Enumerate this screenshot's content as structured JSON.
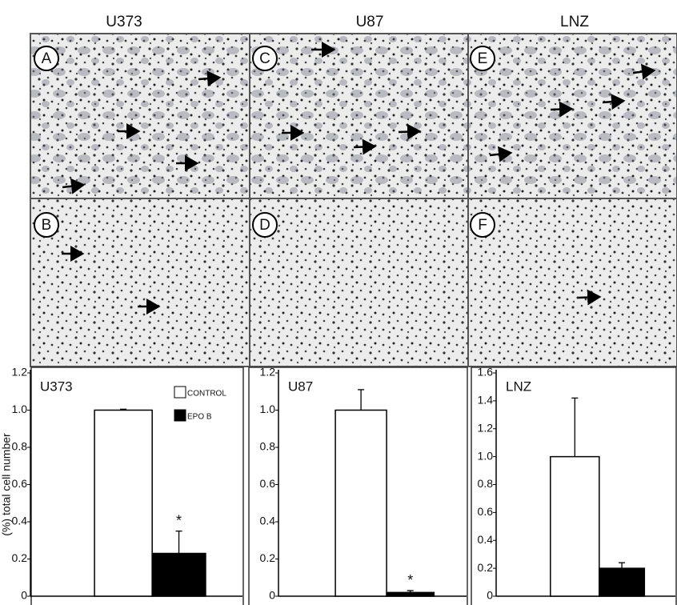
{
  "columns": [
    "U373",
    "U87",
    "LNZ"
  ],
  "panels": [
    "A",
    "B",
    "C",
    "D",
    "E",
    "F"
  ],
  "chart_data": [
    {
      "type": "bar",
      "title": "U373",
      "y_label": "(%) total cell number",
      "legend": "top-right",
      "series": [
        {
          "name": "CONTROL",
          "color": "#ffffff",
          "values": [
            1.0
          ],
          "errors": [
            0.005
          ]
        },
        {
          "name": "EPO B",
          "color": "#000000",
          "values": [
            0.23
          ],
          "errors": [
            0.12
          ]
        }
      ],
      "annotation": "*",
      "ylim": [
        0,
        1.2
      ],
      "yticks": [
        0,
        0.2,
        0.4,
        0.6,
        0.8,
        {
          "value": 1,
          "label": "1.0"
        },
        1.2
      ]
    },
    {
      "type": "bar",
      "title": "U87",
      "series": [
        {
          "color": "#ffffff",
          "values": [
            1.0
          ],
          "errors": [
            0.11
          ]
        },
        {
          "color": "#000000",
          "values": [
            0.02
          ],
          "errors": [
            0.01
          ]
        }
      ],
      "annotation": "*",
      "ylim": [
        0,
        1.2
      ],
      "yticks": [
        0,
        0.2,
        0.4,
        0.6,
        0.8,
        {
          "value": 1,
          "label": "1.0"
        },
        1.2
      ]
    },
    {
      "type": "bar",
      "title": "LNZ",
      "series": [
        {
          "color": "#ffffff",
          "values": [
            1.0
          ],
          "errors": [
            0.42
          ]
        },
        {
          "color": "#000000",
          "values": [
            0.2
          ],
          "errors": [
            0.04
          ]
        }
      ],
      "ylim": [
        0,
        1.6
      ],
      "yticks": [
        0,
        0.2,
        0.4,
        0.6,
        0.8,
        {
          "value": 1,
          "label": "1.0"
        },
        1.2,
        1.4,
        1.6
      ]
    }
  ]
}
